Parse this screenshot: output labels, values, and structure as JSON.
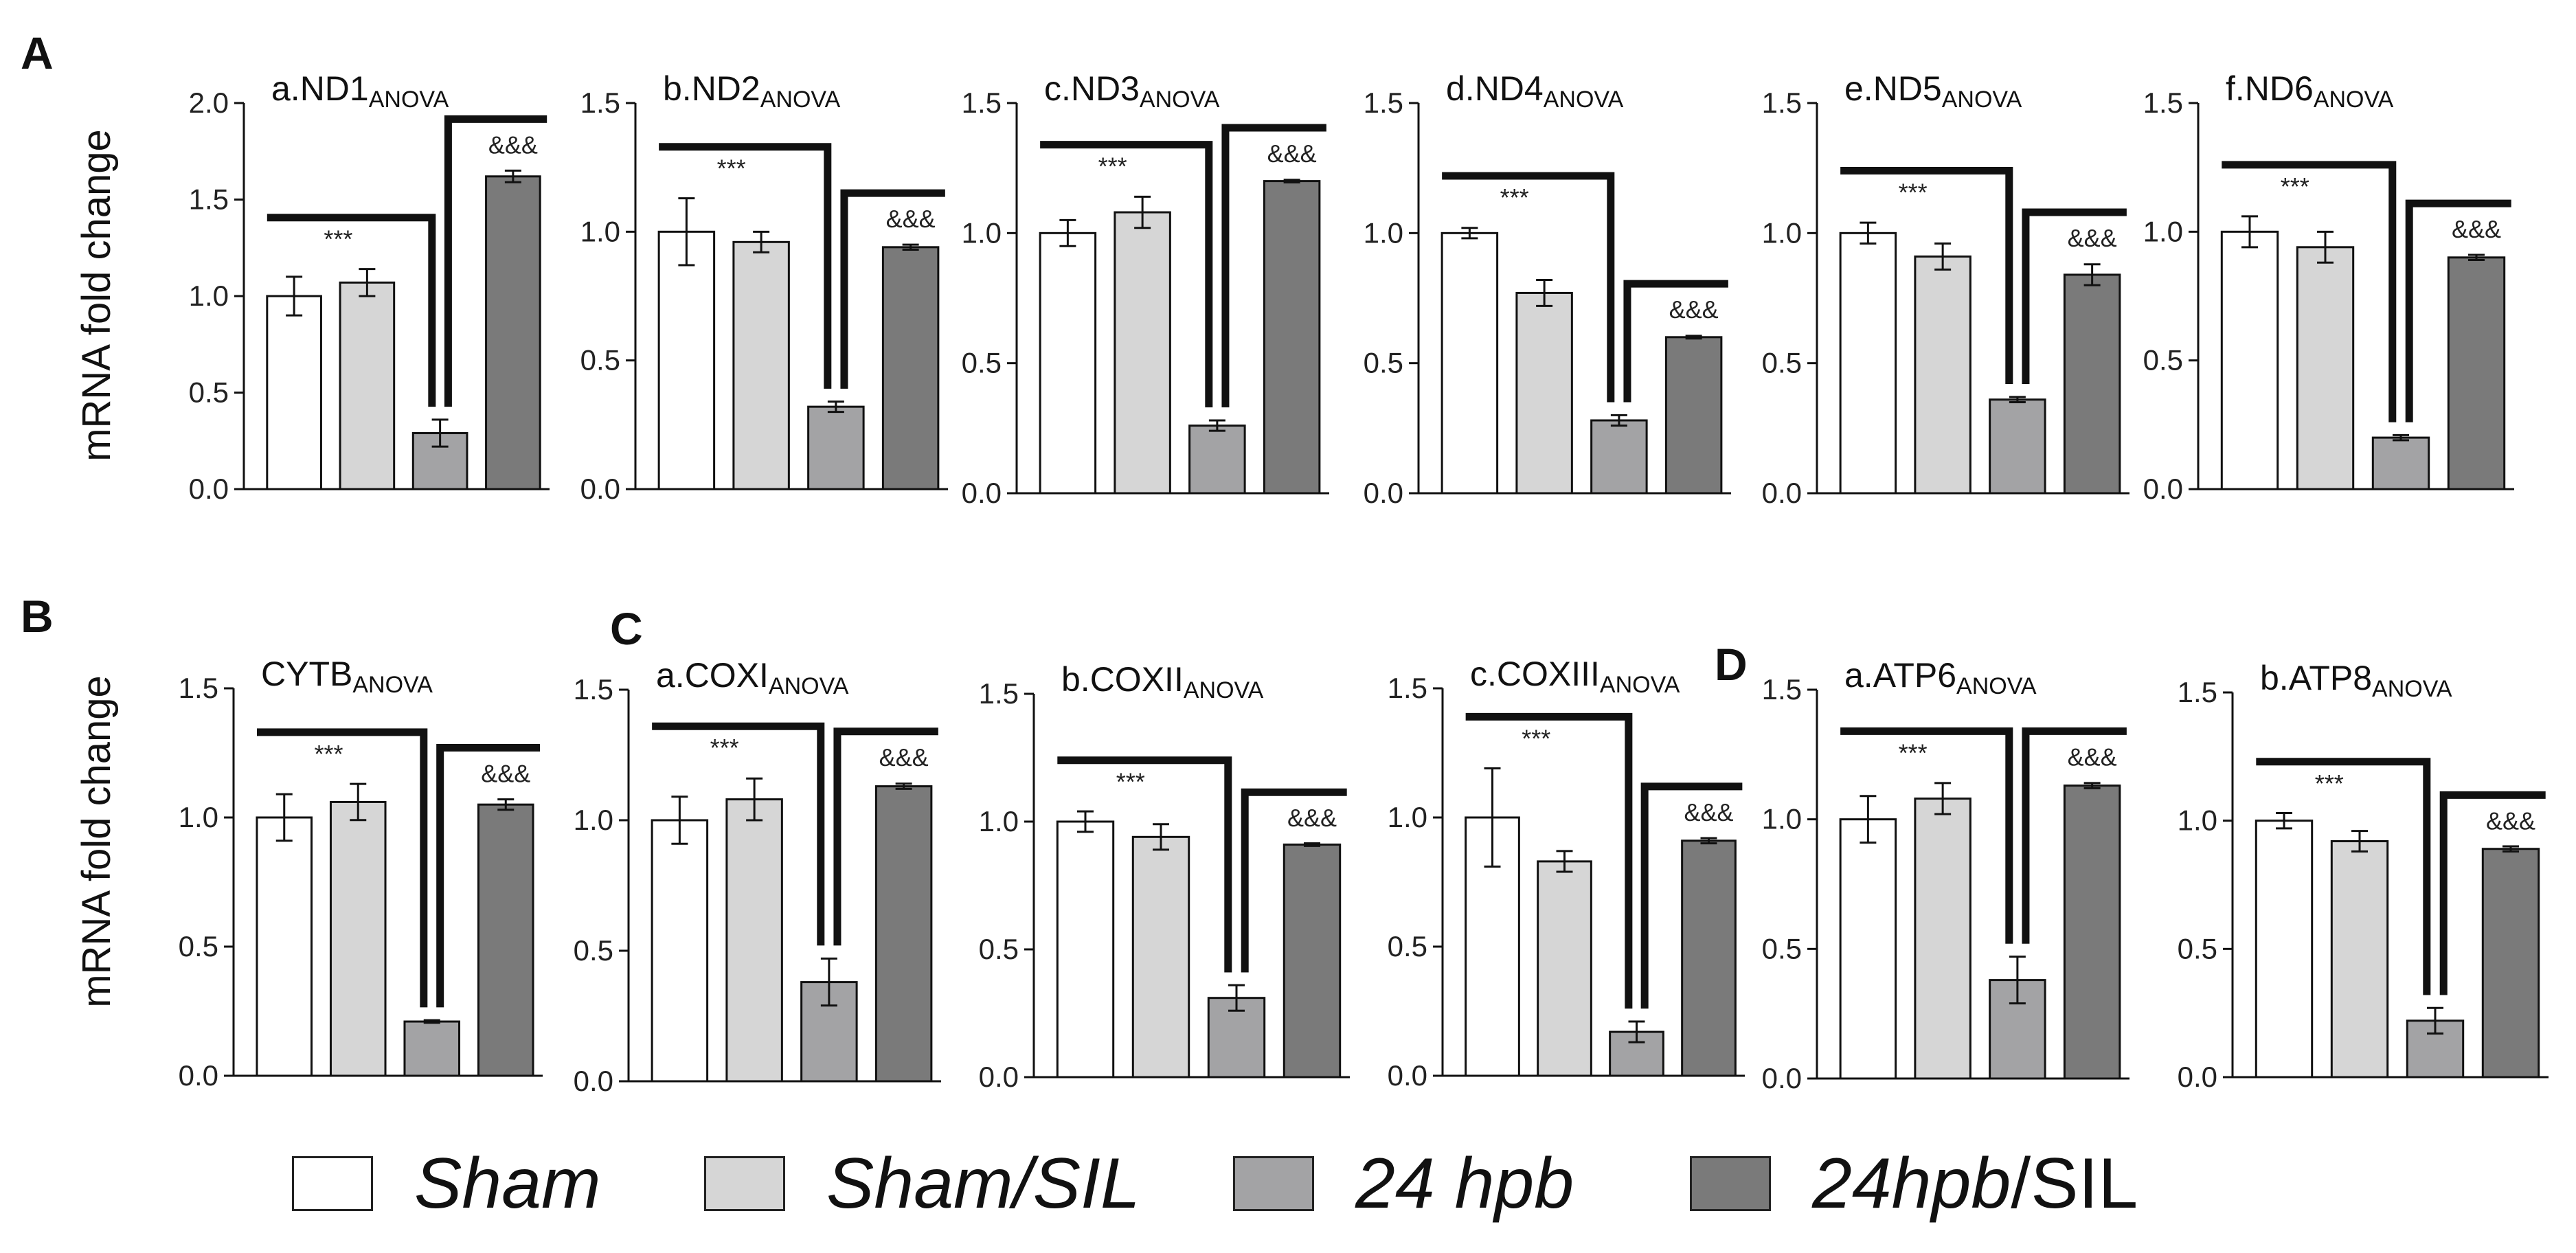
{
  "panel_letters": {
    "A": "A",
    "B": "B",
    "C": "C",
    "D": "D"
  },
  "ylabel": "mRNA fold change",
  "sig_star": "***",
  "sig_amp": "&&&",
  "colors": {
    "sham": "#ffffff",
    "sham_sil": "#d6d6d6",
    "hpb24": "#a3a3a5",
    "hpb24_sil": "#7a7a7a",
    "stroke": "#111111"
  },
  "legend": {
    "sham": "Sham",
    "sham_sil": "Sham/SIL",
    "hpb24": "24 hpb",
    "hpb24_sil_italic": "24hpb",
    "hpb24_sil_rest": "/SIL"
  },
  "chart_data": [
    {
      "type": "bar",
      "title": "a.ND1",
      "title_sub": "ANOVA",
      "categories": [
        "Sham",
        "Sham/SIL",
        "24 hpb",
        "24hpb/SIL"
      ],
      "values": [
        1.0,
        1.07,
        0.29,
        1.62
      ],
      "errors": [
        0.1,
        0.07,
        0.07,
        0.03
      ],
      "ylim": [
        0,
        2.0
      ],
      "yticks": [
        "0.0",
        "0.5",
        "1.0",
        "1.5",
        "2.0"
      ],
      "annotations": [
        {
          "text": "***",
          "compare": "Sham vs 24 hpb"
        },
        {
          "text": "&&&",
          "compare": "24 hpb vs 24hpb/SIL"
        }
      ]
    },
    {
      "type": "bar",
      "title": "b.ND2",
      "title_sub": "ANOVA",
      "categories": [
        "Sham",
        "Sham/SIL",
        "24 hpb",
        "24hpb/SIL"
      ],
      "values": [
        1.0,
        0.96,
        0.32,
        0.94
      ],
      "errors": [
        0.13,
        0.04,
        0.02,
        0.01
      ],
      "ylim": [
        0,
        1.5
      ],
      "yticks": [
        "0.0",
        "0.5",
        "1.0",
        "1.5"
      ],
      "annotations": [
        {
          "text": "***",
          "compare": "Sham vs 24 hpb"
        },
        {
          "text": "&&&",
          "compare": "24 hpb vs 24hpb/SIL"
        }
      ]
    },
    {
      "type": "bar",
      "title": "c.ND3",
      "title_sub": "ANOVA",
      "categories": [
        "Sham",
        "Sham/SIL",
        "24 hpb",
        "24hpb/SIL"
      ],
      "values": [
        1.0,
        1.08,
        0.26,
        1.2
      ],
      "errors": [
        0.05,
        0.06,
        0.02,
        0.005
      ],
      "ylim": [
        0,
        1.5
      ],
      "yticks": [
        "0.0",
        "0.5",
        "1.0",
        "1.5"
      ],
      "annotations": [
        {
          "text": "***",
          "compare": "Sham vs 24 hpb"
        },
        {
          "text": "&&&",
          "compare": "24 hpb vs 24hpb/SIL"
        }
      ]
    },
    {
      "type": "bar",
      "title": "d.ND4",
      "title_sub": "ANOVA",
      "categories": [
        "Sham",
        "Sham/SIL",
        "24 hpb",
        "24hpb/SIL"
      ],
      "values": [
        1.0,
        0.77,
        0.28,
        0.6
      ],
      "errors": [
        0.02,
        0.05,
        0.02,
        0.005
      ],
      "ylim": [
        0,
        1.5
      ],
      "yticks": [
        "0.0",
        "0.5",
        "1.0",
        "1.5"
      ],
      "annotations": [
        {
          "text": "***",
          "compare": "Sham vs 24 hpb"
        },
        {
          "text": "&&&",
          "compare": "24 hpb vs 24hpb/SIL"
        }
      ]
    },
    {
      "type": "bar",
      "title": "e.ND5",
      "title_sub": "ANOVA",
      "categories": [
        "Sham",
        "Sham/SIL",
        "24 hpb",
        "24hpb/SIL"
      ],
      "values": [
        1.0,
        0.91,
        0.36,
        0.84
      ],
      "errors": [
        0.04,
        0.05,
        0.01,
        0.04
      ],
      "ylim": [
        0,
        1.5
      ],
      "yticks": [
        "0.0",
        "0.5",
        "1.0",
        "1.5"
      ],
      "annotations": [
        {
          "text": "***",
          "compare": "Sham vs 24 hpb"
        },
        {
          "text": "&&&",
          "compare": "24 hpb vs 24hpb/SIL"
        }
      ]
    },
    {
      "type": "bar",
      "title": "f.ND6",
      "title_sub": "ANOVA",
      "categories": [
        "Sham",
        "Sham/SIL",
        "24 hpb",
        "24hpb/SIL"
      ],
      "values": [
        1.0,
        0.94,
        0.2,
        0.9
      ],
      "errors": [
        0.06,
        0.06,
        0.01,
        0.01
      ],
      "ylim": [
        0,
        1.5
      ],
      "yticks": [
        "0.0",
        "0.5",
        "1.0",
        "1.5"
      ],
      "annotations": [
        {
          "text": "***",
          "compare": "Sham vs 24 hpb"
        },
        {
          "text": "&&&",
          "compare": "24 hpb vs 24hpb/SIL"
        }
      ]
    },
    {
      "type": "bar",
      "title": "CYTB",
      "title_sub": "ANOVA",
      "categories": [
        "Sham",
        "Sham/SIL",
        "24 hpb",
        "24hpb/SIL"
      ],
      "values": [
        1.0,
        1.06,
        0.21,
        1.05
      ],
      "errors": [
        0.09,
        0.07,
        0.005,
        0.02
      ],
      "ylim": [
        0,
        1.5
      ],
      "yticks": [
        "0.0",
        "0.5",
        "1.0",
        "1.5"
      ],
      "annotations": [
        {
          "text": "***",
          "compare": "Sham vs 24 hpb"
        },
        {
          "text": "&&&",
          "compare": "24 hpb vs 24hpb/SIL"
        }
      ]
    },
    {
      "type": "bar",
      "title": "a.COXI",
      "title_sub": "ANOVA",
      "categories": [
        "Sham",
        "Sham/SIL",
        "24 hpb",
        "24hpb/SIL"
      ],
      "values": [
        1.0,
        1.08,
        0.38,
        1.13
      ],
      "errors": [
        0.09,
        0.08,
        0.09,
        0.01
      ],
      "ylim": [
        0,
        1.5
      ],
      "yticks": [
        "0.0",
        "0.5",
        "1.0",
        "1.5"
      ],
      "annotations": [
        {
          "text": "***",
          "compare": "Sham vs 24 hpb"
        },
        {
          "text": "&&&",
          "compare": "24 hpb vs 24hpb/SIL"
        }
      ]
    },
    {
      "type": "bar",
      "title": "b.COXII",
      "title_sub": "ANOVA",
      "categories": [
        "Sham",
        "Sham/SIL",
        "24 hpb",
        "24hpb/SIL"
      ],
      "values": [
        1.0,
        0.94,
        0.31,
        0.91
      ],
      "errors": [
        0.04,
        0.05,
        0.05,
        0.005
      ],
      "ylim": [
        0,
        1.5
      ],
      "yticks": [
        "0.0",
        "0.5",
        "1.0",
        "1.5"
      ],
      "annotations": [
        {
          "text": "***",
          "compare": "Sham vs 24 hpb"
        },
        {
          "text": "&&&",
          "compare": "24 hpb vs 24hpb/SIL"
        }
      ]
    },
    {
      "type": "bar",
      "title": "c.COXIII",
      "title_sub": "ANOVA",
      "categories": [
        "Sham",
        "Sham/SIL",
        "24 hpb",
        "24hpb/SIL"
      ],
      "values": [
        1.0,
        0.83,
        0.17,
        0.91
      ],
      "errors": [
        0.19,
        0.04,
        0.04,
        0.01
      ],
      "ylim": [
        0,
        1.5
      ],
      "yticks": [
        "0.0",
        "0.5",
        "1.0",
        "1.5"
      ],
      "annotations": [
        {
          "text": "***",
          "compare": "Sham vs 24 hpb"
        },
        {
          "text": "&&&",
          "compare": "24 hpb vs 24hpb/SIL"
        }
      ]
    },
    {
      "type": "bar",
      "title": "a.ATP6",
      "title_sub": "ANOVA",
      "categories": [
        "Sham",
        "Sham/SIL",
        "24 hpb",
        "24hpb/SIL"
      ],
      "values": [
        1.0,
        1.08,
        0.38,
        1.13
      ],
      "errors": [
        0.09,
        0.06,
        0.09,
        0.01
      ],
      "ylim": [
        0,
        1.5
      ],
      "yticks": [
        "0.0",
        "0.5",
        "1.0",
        "1.5"
      ],
      "annotations": [
        {
          "text": "***",
          "compare": "Sham vs 24 hpb"
        },
        {
          "text": "&&&",
          "compare": "24 hpb vs 24hpb/SIL"
        }
      ]
    },
    {
      "type": "bar",
      "title": "b.ATP8",
      "title_sub": "ANOVA",
      "categories": [
        "Sham",
        "Sham/SIL",
        "24 hpb",
        "24hpb/SIL"
      ],
      "values": [
        1.0,
        0.92,
        0.22,
        0.89
      ],
      "errors": [
        0.03,
        0.04,
        0.05,
        0.01
      ],
      "ylim": [
        0,
        1.5
      ],
      "yticks": [
        "0.0",
        "0.5",
        "1.0",
        "1.5"
      ],
      "annotations": [
        {
          "text": "***",
          "compare": "Sham vs 24 hpb"
        },
        {
          "text": "&&&",
          "compare": "24 hpb vs 24hpb/SIL"
        }
      ]
    }
  ]
}
